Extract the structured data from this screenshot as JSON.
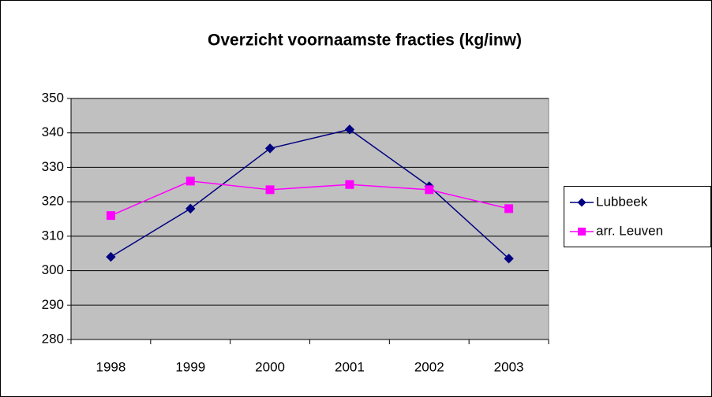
{
  "chart_data": {
    "type": "line",
    "title": "Overzicht voornaamste fracties (kg/inw)",
    "categories": [
      "1998",
      "1999",
      "2000",
      "2001",
      "2002",
      "2003"
    ],
    "series": [
      {
        "name": "Lubbeek",
        "color": "#000080",
        "marker": "diamond",
        "values": [
          304,
          318,
          335.5,
          341,
          324.5,
          303.5
        ]
      },
      {
        "name": "arr. Leuven",
        "color": "#ff00ff",
        "marker": "square",
        "values": [
          316,
          326,
          323.5,
          325,
          323.5,
          318
        ]
      }
    ],
    "ylim": [
      280,
      350
    ],
    "yticks": [
      280,
      290,
      300,
      310,
      320,
      330,
      340,
      350
    ],
    "grid": true,
    "legend": "right"
  }
}
